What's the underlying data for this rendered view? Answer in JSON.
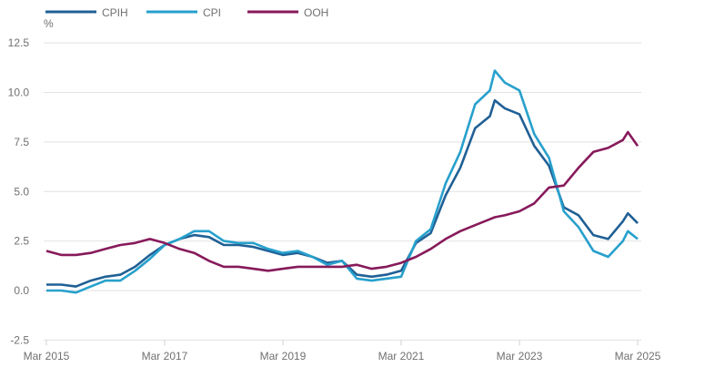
{
  "chart_data": {
    "type": "line",
    "title": "",
    "xlabel": "",
    "ylabel": "%",
    "ylim": [
      -2.5,
      12.5
    ],
    "yticks": [
      "12.5",
      "10.0",
      "7.5",
      "5.0",
      "2.5",
      "0.0",
      "-2.5"
    ],
    "ytick_values": [
      12.5,
      10,
      7.5,
      5,
      2.5,
      0,
      -2.5
    ],
    "xticks": [
      "Mar 2015",
      "Mar 2017",
      "Mar 2019",
      "Mar 2021",
      "Mar 2023",
      "Mar 2025"
    ],
    "xtick_values": [
      "2015-03",
      "2017-03",
      "2019-03",
      "2021-03",
      "2023-03",
      "2025-03"
    ],
    "grid": true,
    "legend_placement": "top-left",
    "x": [
      "2015-03",
      "2015-06",
      "2015-09",
      "2015-12",
      "2016-03",
      "2016-06",
      "2016-09",
      "2016-12",
      "2017-03",
      "2017-06",
      "2017-09",
      "2017-12",
      "2018-03",
      "2018-06",
      "2018-09",
      "2018-12",
      "2019-03",
      "2019-06",
      "2019-09",
      "2019-12",
      "2020-03",
      "2020-06",
      "2020-09",
      "2020-12",
      "2021-03",
      "2021-06",
      "2021-09",
      "2021-12",
      "2022-03",
      "2022-06",
      "2022-09",
      "2022-10",
      "2022-12",
      "2023-03",
      "2023-06",
      "2023-09",
      "2023-12",
      "2024-03",
      "2024-06",
      "2024-09",
      "2024-12",
      "2025-01",
      "2025-03"
    ],
    "series": [
      {
        "name": "CPIH",
        "color": "#206095",
        "values": [
          0.3,
          0.3,
          0.2,
          0.5,
          0.7,
          0.8,
          1.2,
          1.8,
          2.3,
          2.6,
          2.8,
          2.7,
          2.3,
          2.3,
          2.2,
          2.0,
          1.8,
          1.9,
          1.7,
          1.4,
          1.5,
          0.8,
          0.7,
          0.8,
          1.0,
          2.4,
          2.9,
          4.8,
          6.2,
          8.2,
          8.8,
          9.6,
          9.2,
          8.9,
          7.3,
          6.3,
          4.2,
          3.8,
          2.8,
          2.6,
          3.5,
          3.9,
          3.4
        ]
      },
      {
        "name": "CPI",
        "color": "#27a0cc",
        "values": [
          0.0,
          0.0,
          -0.1,
          0.2,
          0.5,
          0.5,
          1.0,
          1.6,
          2.3,
          2.6,
          3.0,
          3.0,
          2.5,
          2.4,
          2.4,
          2.1,
          1.9,
          2.0,
          1.7,
          1.3,
          1.5,
          0.6,
          0.5,
          0.6,
          0.7,
          2.5,
          3.1,
          5.4,
          7.0,
          9.4,
          10.1,
          11.1,
          10.5,
          10.1,
          7.9,
          6.7,
          4.0,
          3.2,
          2.0,
          1.7,
          2.5,
          3.0,
          2.6
        ]
      },
      {
        "name": "OOH",
        "color": "#871a5b",
        "values": [
          2.0,
          1.8,
          1.8,
          1.9,
          2.1,
          2.3,
          2.4,
          2.6,
          2.4,
          2.1,
          1.9,
          1.5,
          1.2,
          1.2,
          1.1,
          1.0,
          1.1,
          1.2,
          1.2,
          1.2,
          1.2,
          1.3,
          1.1,
          1.2,
          1.4,
          1.7,
          2.1,
          2.6,
          3.0,
          3.3,
          3.6,
          3.7,
          3.8,
          4.0,
          4.4,
          5.2,
          5.3,
          6.2,
          7.0,
          7.2,
          7.6,
          8.0,
          7.3
        ]
      }
    ]
  }
}
